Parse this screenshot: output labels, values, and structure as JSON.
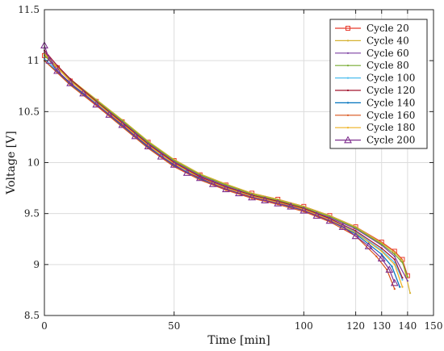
{
  "chart_data": {
    "type": "line",
    "xlabel": "Time [min]",
    "ylabel": "Voltage [V]",
    "xlim": [
      0,
      150
    ],
    "ylim": [
      8.5,
      11.5
    ],
    "xticks": [
      0,
      50,
      100,
      120,
      130,
      140,
      150
    ],
    "yticks": [
      8.5,
      9,
      9.5,
      10,
      10.5,
      11,
      11.5
    ],
    "ytick_labels": [
      "8.5",
      "9",
      "9.5",
      "10",
      "10.5",
      "11",
      "11.5"
    ],
    "grid": true,
    "legend_position": "top-right",
    "series": [
      {
        "name": "Cycle 20",
        "color": "#e8392b",
        "marker": "square",
        "points": [
          [
            0,
            11.05
          ],
          [
            5,
            10.93
          ],
          [
            10,
            10.8
          ],
          [
            20,
            10.6
          ],
          [
            30,
            10.4
          ],
          [
            40,
            10.2
          ],
          [
            50,
            10.02
          ],
          [
            60,
            9.88
          ],
          [
            70,
            9.78
          ],
          [
            80,
            9.7
          ],
          [
            90,
            9.64
          ],
          [
            100,
            9.57
          ],
          [
            110,
            9.48
          ],
          [
            120,
            9.37
          ],
          [
            130,
            9.22
          ],
          [
            135,
            9.13
          ],
          [
            138,
            9.05
          ],
          [
            140,
            8.89
          ]
        ]
      },
      {
        "name": "Cycle 40",
        "color": "#d6b232",
        "marker": "dot",
        "points": [
          [
            0,
            11.06
          ],
          [
            5,
            10.94
          ],
          [
            10,
            10.82
          ],
          [
            20,
            10.62
          ],
          [
            30,
            10.42
          ],
          [
            40,
            10.21
          ],
          [
            50,
            10.03
          ],
          [
            60,
            9.89
          ],
          [
            70,
            9.79
          ],
          [
            80,
            9.7
          ],
          [
            90,
            9.64
          ],
          [
            100,
            9.57
          ],
          [
            110,
            9.48
          ],
          [
            120,
            9.37
          ],
          [
            130,
            9.21
          ],
          [
            135,
            9.12
          ],
          [
            138,
            9.04
          ],
          [
            141,
            8.72
          ]
        ]
      },
      {
        "name": "Cycle 60",
        "color": "#7b3fa0",
        "marker": "dot",
        "points": [
          [
            0,
            11.08
          ],
          [
            5,
            10.93
          ],
          [
            10,
            10.81
          ],
          [
            20,
            10.61
          ],
          [
            30,
            10.4
          ],
          [
            40,
            10.19
          ],
          [
            50,
            10.01
          ],
          [
            60,
            9.87
          ],
          [
            70,
            9.77
          ],
          [
            80,
            9.68
          ],
          [
            90,
            9.62
          ],
          [
            100,
            9.55
          ],
          [
            110,
            9.46
          ],
          [
            120,
            9.35
          ],
          [
            130,
            9.19
          ],
          [
            135,
            9.08
          ],
          [
            140,
            8.84
          ]
        ]
      },
      {
        "name": "Cycle 80",
        "color": "#77ac30",
        "marker": "dot",
        "points": [
          [
            0,
            11.05
          ],
          [
            5,
            10.93
          ],
          [
            10,
            10.81
          ],
          [
            20,
            10.61
          ],
          [
            30,
            10.41
          ],
          [
            40,
            10.2
          ],
          [
            50,
            10.02
          ],
          [
            60,
            9.88
          ],
          [
            70,
            9.78
          ],
          [
            80,
            9.69
          ],
          [
            90,
            9.63
          ],
          [
            100,
            9.56
          ],
          [
            110,
            9.47
          ],
          [
            120,
            9.36
          ],
          [
            130,
            9.2
          ],
          [
            135,
            9.1
          ],
          [
            138,
            9.02
          ],
          [
            140,
            8.88
          ]
        ]
      },
      {
        "name": "Cycle 100",
        "color": "#4dbeee",
        "marker": "dot",
        "points": [
          [
            0,
            11.02
          ],
          [
            5,
            10.9
          ],
          [
            10,
            10.78
          ],
          [
            20,
            10.58
          ],
          [
            30,
            10.37
          ],
          [
            40,
            10.16
          ],
          [
            50,
            9.98
          ],
          [
            60,
            9.85
          ],
          [
            70,
            9.75
          ],
          [
            80,
            9.67
          ],
          [
            90,
            9.61
          ],
          [
            100,
            9.54
          ],
          [
            110,
            9.44
          ],
          [
            120,
            9.32
          ],
          [
            130,
            9.14
          ],
          [
            135,
            9.02
          ],
          [
            138,
            8.85
          ]
        ]
      },
      {
        "name": "Cycle 120",
        "color": "#a2142f",
        "marker": "dot",
        "points": [
          [
            0,
            11.1
          ],
          [
            5,
            10.95
          ],
          [
            10,
            10.82
          ],
          [
            20,
            10.6
          ],
          [
            30,
            10.39
          ],
          [
            40,
            10.18
          ],
          [
            50,
            10.0
          ],
          [
            60,
            9.86
          ],
          [
            70,
            9.76
          ],
          [
            80,
            9.68
          ],
          [
            90,
            9.62
          ],
          [
            100,
            9.55
          ],
          [
            110,
            9.45
          ],
          [
            120,
            9.33
          ],
          [
            130,
            9.16
          ],
          [
            135,
            9.05
          ],
          [
            138,
            8.87
          ]
        ]
      },
      {
        "name": "Cycle 140",
        "color": "#0072bd",
        "marker": "dot",
        "points": [
          [
            0,
            11.0
          ],
          [
            5,
            10.89
          ],
          [
            10,
            10.77
          ],
          [
            20,
            10.57
          ],
          [
            30,
            10.36
          ],
          [
            40,
            10.15
          ],
          [
            50,
            9.97
          ],
          [
            60,
            9.84
          ],
          [
            70,
            9.74
          ],
          [
            80,
            9.66
          ],
          [
            90,
            9.6
          ],
          [
            100,
            9.53
          ],
          [
            110,
            9.43
          ],
          [
            120,
            9.3
          ],
          [
            130,
            9.1
          ],
          [
            134,
            8.98
          ],
          [
            137,
            8.78
          ]
        ]
      },
      {
        "name": "Cycle 160",
        "color": "#d95319",
        "marker": "dot",
        "points": [
          [
            0,
            11.0
          ],
          [
            5,
            10.88
          ],
          [
            10,
            10.76
          ],
          [
            20,
            10.56
          ],
          [
            30,
            10.35
          ],
          [
            40,
            10.14
          ],
          [
            50,
            9.96
          ],
          [
            60,
            9.83
          ],
          [
            70,
            9.73
          ],
          [
            80,
            9.65
          ],
          [
            90,
            9.59
          ],
          [
            100,
            9.52
          ],
          [
            110,
            9.42
          ],
          [
            120,
            9.28
          ],
          [
            128,
            9.08
          ],
          [
            132,
            8.95
          ],
          [
            135,
            8.76
          ]
        ]
      },
      {
        "name": "Cycle 180",
        "color": "#edb120",
        "marker": "dot",
        "points": [
          [
            0,
            11.07
          ],
          [
            5,
            10.93
          ],
          [
            10,
            10.8
          ],
          [
            20,
            10.59
          ],
          [
            30,
            10.38
          ],
          [
            40,
            10.17
          ],
          [
            50,
            9.99
          ],
          [
            60,
            9.85
          ],
          [
            70,
            9.75
          ],
          [
            80,
            9.67
          ],
          [
            90,
            9.61
          ],
          [
            100,
            9.54
          ],
          [
            110,
            9.44
          ],
          [
            120,
            9.31
          ],
          [
            130,
            9.13
          ],
          [
            135,
            9.0
          ],
          [
            138,
            8.78
          ]
        ]
      },
      {
        "name": "Cycle 200",
        "color": "#7e2f8e",
        "marker": "triangle",
        "points": [
          [
            0,
            11.15
          ],
          [
            2,
            11.0
          ],
          [
            5,
            10.9
          ],
          [
            10,
            10.78
          ],
          [
            15,
            10.68
          ],
          [
            20,
            10.57
          ],
          [
            25,
            10.47
          ],
          [
            30,
            10.37
          ],
          [
            35,
            10.26
          ],
          [
            40,
            10.16
          ],
          [
            45,
            10.06
          ],
          [
            50,
            9.98
          ],
          [
            55,
            9.9
          ],
          [
            60,
            9.85
          ],
          [
            65,
            9.79
          ],
          [
            70,
            9.74
          ],
          [
            75,
            9.7
          ],
          [
            80,
            9.66
          ],
          [
            85,
            9.63
          ],
          [
            90,
            9.6
          ],
          [
            95,
            9.57
          ],
          [
            100,
            9.53
          ],
          [
            105,
            9.48
          ],
          [
            110,
            9.43
          ],
          [
            115,
            9.37
          ],
          [
            120,
            9.28
          ],
          [
            125,
            9.18
          ],
          [
            130,
            9.06
          ],
          [
            133,
            8.95
          ],
          [
            135,
            8.82
          ]
        ]
      }
    ]
  }
}
